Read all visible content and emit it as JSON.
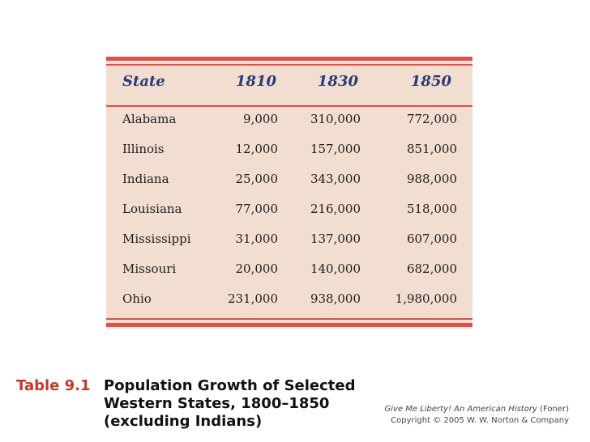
{
  "table": {
    "headers": {
      "state": "State",
      "y1810": "1810",
      "y1830": "1830",
      "y1850": "1850"
    },
    "rows": [
      {
        "state": "Alabama",
        "y1810": "9,000",
        "y1830": "310,000",
        "y1850": "772,000"
      },
      {
        "state": "Illinois",
        "y1810": "12,000",
        "y1830": "157,000",
        "y1850": "851,000"
      },
      {
        "state": "Indiana",
        "y1810": "25,000",
        "y1830": "343,000",
        "y1850": "988,000"
      },
      {
        "state": "Louisiana",
        "y1810": "77,000",
        "y1830": "216,000",
        "y1850": "518,000"
      },
      {
        "state": "Mississippi",
        "y1810": "31,000",
        "y1830": "137,000",
        "y1850": "607,000"
      },
      {
        "state": "Missouri",
        "y1810": "20,000",
        "y1830": "140,000",
        "y1850": "682,000"
      },
      {
        "state": "Ohio",
        "y1810": "231,000",
        "y1830": "938,000",
        "y1850": "1,980,000"
      }
    ]
  },
  "caption": {
    "label": "Table 9.1",
    "title_lines": [
      "Population Growth of Selected",
      "Western States, 1800–1850",
      "(excluding Indians)"
    ]
  },
  "credit": {
    "book": "Give Me Liberty! An American History",
    "author": " (Foner)",
    "copyright": "Copyright © 2005 W. W. Norton & Company"
  },
  "colors": {
    "accent": "#d9534a",
    "panel": "#f2ddd1",
    "header_text": "#2c3a78",
    "label": "#c0392b"
  }
}
